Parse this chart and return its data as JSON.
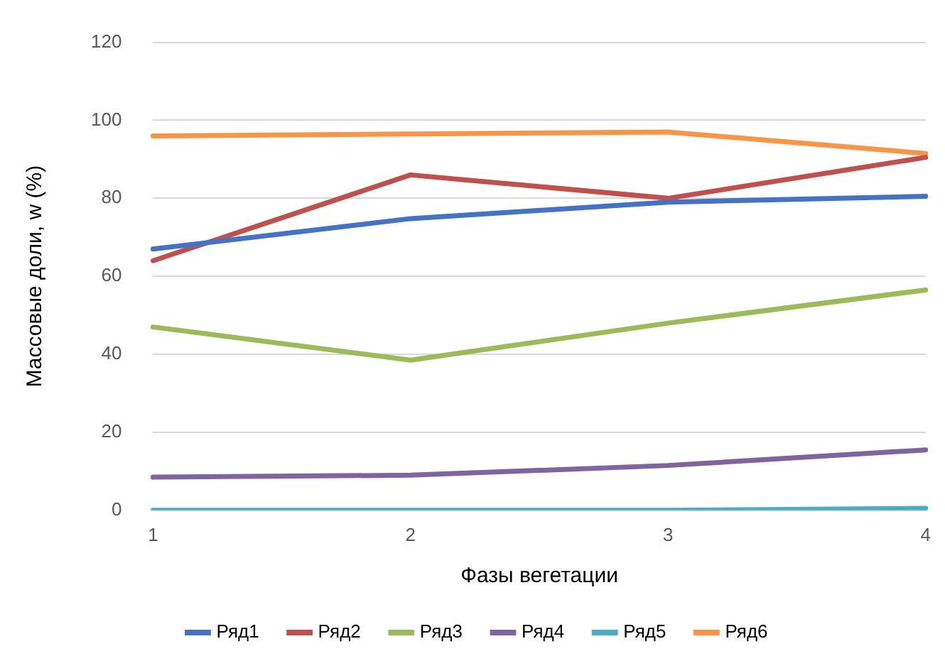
{
  "chart_data": {
    "type": "line",
    "xlabel": "Фазы вегетации",
    "ylabel": "Массовые доли, w (%)",
    "categories": [
      "1",
      "2",
      "3",
      "4"
    ],
    "series": [
      {
        "name": "Ряд1",
        "color": "#4472c4",
        "values": [
          67,
          74.8,
          79,
          80.5
        ]
      },
      {
        "name": "Ряд2",
        "color": "#c0504d",
        "values": [
          64,
          86,
          80,
          90.5
        ]
      },
      {
        "name": "Ряд3",
        "color": "#9bbb59",
        "values": [
          47,
          38.5,
          48,
          56.5
        ]
      },
      {
        "name": "Ряд4",
        "color": "#8064a2",
        "values": [
          8.5,
          9,
          11.5,
          15.5
        ]
      },
      {
        "name": "Ряд5",
        "color": "#4bacc6",
        "values": [
          0,
          0,
          0,
          0.5
        ]
      },
      {
        "name": "Ряд6",
        "color": "#f79646",
        "values": [
          96,
          96.5,
          97,
          91.5
        ]
      }
    ],
    "ylim": [
      0,
      120
    ],
    "yticks": [
      0,
      20,
      40,
      60,
      80,
      100,
      120
    ],
    "grid": "y",
    "legend": "bottom",
    "marker": "none",
    "line_style": "solid"
  }
}
